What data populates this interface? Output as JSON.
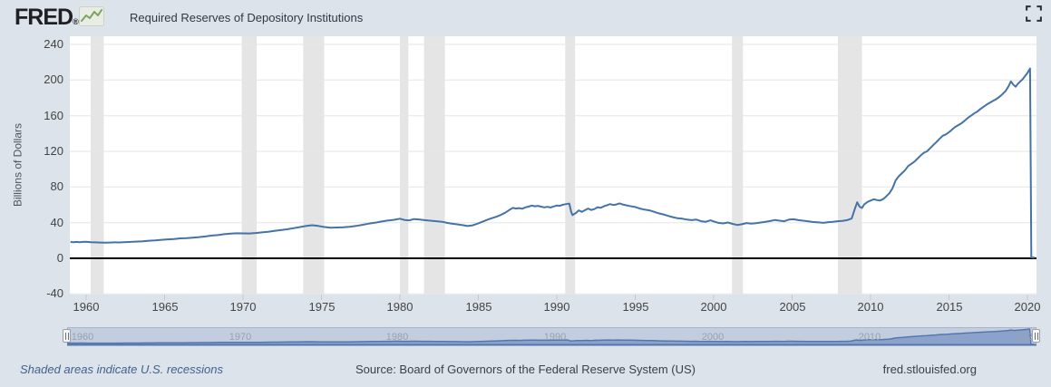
{
  "header": {
    "logo_text": "FRED",
    "logo_mark": "®",
    "series_label": "Required Reserves of Depository Institutions",
    "series_color": "#4572a7"
  },
  "chart": {
    "y_axis_title": "Billions of Dollars",
    "y_ticks": [
      240,
      200,
      160,
      120,
      80,
      40,
      0,
      -40
    ],
    "x_ticks": [
      1960,
      1965,
      1970,
      1975,
      1980,
      1985,
      1990,
      1995,
      2000,
      2005,
      2010,
      2015,
      2020
    ],
    "colors": {
      "background": "#dce3eb",
      "plot_background": "#ffffff",
      "gridline": "#e6e6e6",
      "recession_band": "#e5e5e5",
      "series_line": "#4572a7",
      "zero_line": "#000000",
      "axis_tick": "#c3c9d2",
      "tick_label": "#444444"
    }
  },
  "chart_data": {
    "type": "line",
    "title": "Required Reserves of Depository Institutions",
    "ylabel": "Billions of Dollars",
    "x_range": [
      1959.0,
      2020.6
    ],
    "ylim": [
      -40,
      240
    ],
    "y_tick_interval": 40,
    "grid": "horizontal",
    "zero_line": true,
    "legend_position": "top-left-header",
    "recessions": [
      [
        1960.29,
        1961.12
      ],
      [
        1969.92,
        1970.87
      ],
      [
        1973.83,
        1975.17
      ],
      [
        1980.0,
        1980.54
      ],
      [
        1981.54,
        1982.87
      ],
      [
        1990.54,
        1991.17
      ],
      [
        2001.17,
        2001.87
      ],
      [
        2007.92,
        2009.46
      ]
    ],
    "series": [
      {
        "name": "Required Reserves of Depository Institutions",
        "color": "#4572a7",
        "points": [
          [
            1959.0,
            18.3
          ],
          [
            1959.2,
            18.0
          ],
          [
            1959.4,
            18.4
          ],
          [
            1959.6,
            18.1
          ],
          [
            1959.8,
            18.4
          ],
          [
            1960.0,
            18.5
          ],
          [
            1960.3,
            18.0
          ],
          [
            1960.6,
            17.9
          ],
          [
            1960.9,
            17.7
          ],
          [
            1961.2,
            17.5
          ],
          [
            1961.5,
            17.7
          ],
          [
            1961.8,
            17.9
          ],
          [
            1962.1,
            17.8
          ],
          [
            1962.4,
            18.1
          ],
          [
            1962.7,
            18.3
          ],
          [
            1963.0,
            18.6
          ],
          [
            1963.3,
            18.8
          ],
          [
            1963.6,
            19.1
          ],
          [
            1964.0,
            19.7
          ],
          [
            1964.4,
            20.0
          ],
          [
            1964.8,
            20.7
          ],
          [
            1965.2,
            21.3
          ],
          [
            1965.6,
            21.7
          ],
          [
            1966.0,
            22.4
          ],
          [
            1966.4,
            22.7
          ],
          [
            1966.8,
            23.2
          ],
          [
            1967.2,
            23.8
          ],
          [
            1967.6,
            24.5
          ],
          [
            1968.0,
            25.5
          ],
          [
            1968.4,
            26.0
          ],
          [
            1968.8,
            27.0
          ],
          [
            1969.2,
            27.7
          ],
          [
            1969.6,
            28.1
          ],
          [
            1970.0,
            28.0
          ],
          [
            1970.4,
            27.9
          ],
          [
            1970.8,
            28.4
          ],
          [
            1971.2,
            29.1
          ],
          [
            1971.6,
            29.8
          ],
          [
            1972.0,
            30.8
          ],
          [
            1972.4,
            31.6
          ],
          [
            1972.8,
            32.5
          ],
          [
            1973.2,
            33.8
          ],
          [
            1973.6,
            35.0
          ],
          [
            1974.0,
            36.2
          ],
          [
            1974.4,
            37.1
          ],
          [
            1974.8,
            36.3
          ],
          [
            1975.2,
            35.1
          ],
          [
            1975.6,
            34.4
          ],
          [
            1976.0,
            34.6
          ],
          [
            1976.4,
            34.9
          ],
          [
            1976.8,
            35.4
          ],
          [
            1977.2,
            36.3
          ],
          [
            1977.6,
            37.5
          ],
          [
            1978.0,
            38.8
          ],
          [
            1978.4,
            39.9
          ],
          [
            1978.8,
            41.2
          ],
          [
            1979.2,
            42.3
          ],
          [
            1979.6,
            43.1
          ],
          [
            1980.0,
            44.4
          ],
          [
            1980.3,
            43.0
          ],
          [
            1980.6,
            42.6
          ],
          [
            1980.9,
            44.0
          ],
          [
            1981.2,
            43.6
          ],
          [
            1981.5,
            43.0
          ],
          [
            1981.8,
            42.4
          ],
          [
            1982.1,
            42.0
          ],
          [
            1982.4,
            41.4
          ],
          [
            1982.7,
            41.0
          ],
          [
            1983.0,
            39.8
          ],
          [
            1983.3,
            38.9
          ],
          [
            1983.6,
            38.2
          ],
          [
            1984.0,
            37.2
          ],
          [
            1984.3,
            36.2
          ],
          [
            1984.6,
            36.8
          ],
          [
            1984.9,
            38.5
          ],
          [
            1985.2,
            40.6
          ],
          [
            1985.5,
            42.8
          ],
          [
            1985.8,
            44.6
          ],
          [
            1986.1,
            46.4
          ],
          [
            1986.4,
            48.4
          ],
          [
            1986.7,
            51.0
          ],
          [
            1987.0,
            54.5
          ],
          [
            1987.2,
            56.6
          ],
          [
            1987.4,
            55.8
          ],
          [
            1987.6,
            56.3
          ],
          [
            1987.8,
            55.6
          ],
          [
            1988.0,
            57.2
          ],
          [
            1988.2,
            58.0
          ],
          [
            1988.4,
            59.2
          ],
          [
            1988.6,
            58.4
          ],
          [
            1988.8,
            58.9
          ],
          [
            1989.0,
            58.0
          ],
          [
            1989.2,
            57.2
          ],
          [
            1989.4,
            57.8
          ],
          [
            1989.6,
            57.0
          ],
          [
            1989.8,
            58.2
          ],
          [
            1990.0,
            59.2
          ],
          [
            1990.2,
            59.0
          ],
          [
            1990.4,
            60.2
          ],
          [
            1990.6,
            60.8
          ],
          [
            1990.8,
            61.4
          ],
          [
            1990.92,
            52.0
          ],
          [
            1991.0,
            48.5
          ],
          [
            1991.2,
            50.5
          ],
          [
            1991.4,
            53.8
          ],
          [
            1991.6,
            52.2
          ],
          [
            1991.8,
            54.0
          ],
          [
            1992.0,
            55.8
          ],
          [
            1992.2,
            54.2
          ],
          [
            1992.4,
            55.2
          ],
          [
            1992.6,
            57.4
          ],
          [
            1992.8,
            56.6
          ],
          [
            1993.0,
            58.4
          ],
          [
            1993.2,
            59.6
          ],
          [
            1993.4,
            60.8
          ],
          [
            1993.6,
            59.8
          ],
          [
            1993.8,
            60.4
          ],
          [
            1994.0,
            61.6
          ],
          [
            1994.2,
            60.4
          ],
          [
            1994.4,
            59.6
          ],
          [
            1994.6,
            58.8
          ],
          [
            1994.8,
            58.2
          ],
          [
            1995.0,
            57.6
          ],
          [
            1995.3,
            55.8
          ],
          [
            1995.6,
            54.6
          ],
          [
            1995.9,
            53.8
          ],
          [
            1996.2,
            52.2
          ],
          [
            1996.5,
            50.4
          ],
          [
            1996.8,
            49.2
          ],
          [
            1997.1,
            47.6
          ],
          [
            1997.4,
            46.2
          ],
          [
            1997.7,
            45.0
          ],
          [
            1998.0,
            44.4
          ],
          [
            1998.3,
            43.4
          ],
          [
            1998.6,
            42.8
          ],
          [
            1998.9,
            43.4
          ],
          [
            1999.2,
            41.6
          ],
          [
            1999.5,
            41.0
          ],
          [
            1999.8,
            42.6
          ],
          [
            2000.0,
            41.4
          ],
          [
            2000.3,
            39.8
          ],
          [
            2000.6,
            39.2
          ],
          [
            2000.9,
            40.2
          ],
          [
            2001.2,
            38.6
          ],
          [
            2001.5,
            37.4
          ],
          [
            2001.8,
            38.2
          ],
          [
            2002.1,
            39.6
          ],
          [
            2002.4,
            38.8
          ],
          [
            2002.7,
            39.4
          ],
          [
            2003.0,
            40.2
          ],
          [
            2003.3,
            41.0
          ],
          [
            2003.6,
            41.8
          ],
          [
            2003.9,
            43.0
          ],
          [
            2004.2,
            42.2
          ],
          [
            2004.5,
            41.6
          ],
          [
            2004.8,
            43.4
          ],
          [
            2005.1,
            43.8
          ],
          [
            2005.4,
            42.8
          ],
          [
            2005.7,
            42.2
          ],
          [
            2006.0,
            41.6
          ],
          [
            2006.3,
            40.8
          ],
          [
            2006.6,
            40.4
          ],
          [
            2007.0,
            39.8
          ],
          [
            2007.3,
            40.6
          ],
          [
            2007.6,
            41.0
          ],
          [
            2007.9,
            41.6
          ],
          [
            2008.2,
            42.0
          ],
          [
            2008.5,
            42.8
          ],
          [
            2008.8,
            44.6
          ],
          [
            2009.0,
            55.5
          ],
          [
            2009.15,
            62.8
          ],
          [
            2009.3,
            58.0
          ],
          [
            2009.45,
            56.4
          ],
          [
            2009.6,
            60.6
          ],
          [
            2009.8,
            63.2
          ],
          [
            2010.0,
            64.8
          ],
          [
            2010.2,
            66.2
          ],
          [
            2010.4,
            65.4
          ],
          [
            2010.6,
            64.8
          ],
          [
            2010.8,
            66.4
          ],
          [
            2011.0,
            69.5
          ],
          [
            2011.2,
            73.0
          ],
          [
            2011.4,
            78.5
          ],
          [
            2011.6,
            87.5
          ],
          [
            2011.8,
            92.0
          ],
          [
            2012.0,
            95.5
          ],
          [
            2012.2,
            99.0
          ],
          [
            2012.4,
            103.5
          ],
          [
            2012.6,
            106.0
          ],
          [
            2012.8,
            108.5
          ],
          [
            2013.0,
            112.0
          ],
          [
            2013.2,
            115.5
          ],
          [
            2013.4,
            118.5
          ],
          [
            2013.6,
            120.0
          ],
          [
            2013.8,
            123.5
          ],
          [
            2014.0,
            127.0
          ],
          [
            2014.2,
            130.5
          ],
          [
            2014.4,
            134.0
          ],
          [
            2014.6,
            137.5
          ],
          [
            2014.8,
            139.0
          ],
          [
            2015.0,
            141.5
          ],
          [
            2015.2,
            144.5
          ],
          [
            2015.4,
            147.5
          ],
          [
            2015.6,
            149.5
          ],
          [
            2015.8,
            151.5
          ],
          [
            2016.0,
            154.5
          ],
          [
            2016.2,
            157.5
          ],
          [
            2016.4,
            160.0
          ],
          [
            2016.6,
            162.5
          ],
          [
            2016.8,
            164.5
          ],
          [
            2017.0,
            167.5
          ],
          [
            2017.2,
            170.0
          ],
          [
            2017.4,
            172.5
          ],
          [
            2017.6,
            174.5
          ],
          [
            2017.8,
            176.5
          ],
          [
            2018.0,
            178.5
          ],
          [
            2018.2,
            181.0
          ],
          [
            2018.4,
            184.0
          ],
          [
            2018.6,
            187.5
          ],
          [
            2018.8,
            193.0
          ],
          [
            2018.95,
            198.5
          ],
          [
            2019.1,
            195.0
          ],
          [
            2019.25,
            192.5
          ],
          [
            2019.4,
            196.0
          ],
          [
            2019.55,
            198.5
          ],
          [
            2019.7,
            201.0
          ],
          [
            2019.85,
            204.5
          ],
          [
            2020.0,
            208.0
          ],
          [
            2020.1,
            211.0
          ],
          [
            2020.17,
            213.0
          ],
          [
            2020.25,
            1.0
          ],
          [
            2020.45,
            0.8
          ]
        ]
      }
    ]
  },
  "navigator": {
    "labels": [
      1960,
      1970,
      1980,
      1990,
      2000,
      2010,
      2020
    ],
    "track_color": "#c2cde0",
    "area_color": "#8ba3cb",
    "line_color": "#5577ad",
    "label_color": "#98a1b2"
  },
  "footer": {
    "note": "Shaded areas indicate U.S. recessions",
    "source": "Source: Board of Governors of the Federal Reserve System (US)",
    "site": "fred.stlouisfed.org"
  }
}
